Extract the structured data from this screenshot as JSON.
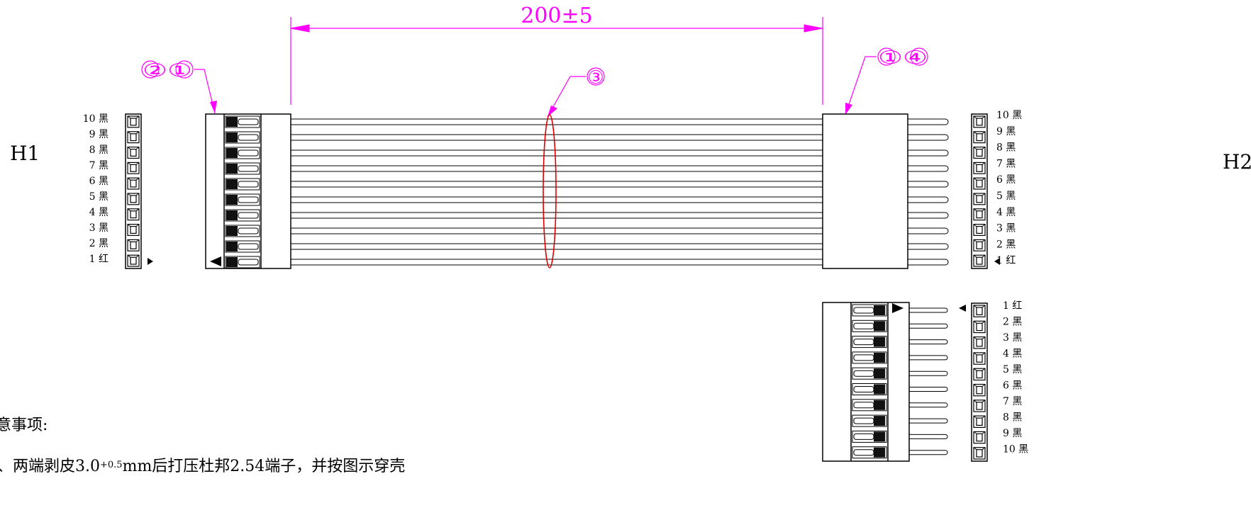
{
  "dimension": {
    "label": "200±5"
  },
  "callouts": {
    "left": "②①",
    "middle": "③",
    "right": "①④"
  },
  "connectors": {
    "h1": {
      "label": "H1"
    },
    "h2": {
      "label": "H2"
    }
  },
  "pin_labels": [
    "1 红",
    "2 黑",
    "3 黑",
    "4 黑",
    "5 黑",
    "6 黑",
    "7 黑",
    "8 黑",
    "9 黑",
    "10 黑"
  ],
  "notes": {
    "heading": "意事项:",
    "line1": "、两端剥皮3.0",
    "tolerance": "+0.5",
    "line1_rest": "mm后打压杜邦2.54端子，并按图示穿壳"
  },
  "colors": {
    "dimension": "#ff00ff",
    "bundle": "#e00000",
    "outline": "#000000"
  },
  "icons": {
    "pin1_marker": "triangle-marker",
    "connector_pin": "square-pin"
  }
}
